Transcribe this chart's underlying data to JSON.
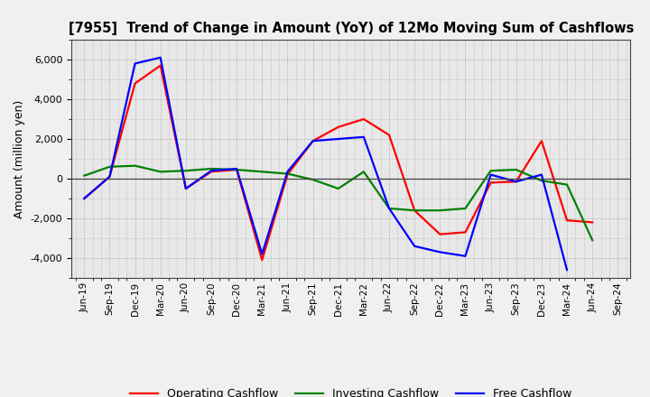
{
  "title": "[7955]  Trend of Change in Amount (YoY) of 12Mo Moving Sum of Cashflows",
  "ylabel": "Amount (million yen)",
  "x_labels": [
    "Jun-19",
    "Sep-19",
    "Dec-19",
    "Mar-20",
    "Jun-20",
    "Sep-20",
    "Dec-20",
    "Mar-21",
    "Jun-21",
    "Sep-21",
    "Dec-21",
    "Mar-22",
    "Jun-22",
    "Sep-22",
    "Dec-22",
    "Mar-23",
    "Jun-23",
    "Sep-23",
    "Dec-23",
    "Mar-24",
    "Jun-24",
    "Sep-24"
  ],
  "operating_cashflow": [
    -1000,
    100,
    4800,
    5700,
    -500,
    350,
    450,
    -4100,
    200,
    1900,
    2600,
    3000,
    2200,
    -1600,
    -2800,
    -2700,
    -200,
    -150,
    1900,
    -2100,
    -2200,
    null
  ],
  "investing_cashflow": [
    150,
    600,
    650,
    350,
    400,
    500,
    450,
    350,
    250,
    -50,
    -500,
    350,
    -1500,
    -1600,
    -1600,
    -1500,
    400,
    450,
    -100,
    -300,
    -3100,
    null
  ],
  "free_cashflow": [
    -1000,
    100,
    5800,
    6100,
    -500,
    400,
    500,
    -3800,
    350,
    1900,
    2000,
    2100,
    -1500,
    -3400,
    -3700,
    -3900,
    200,
    -150,
    200,
    -4600,
    null,
    null
  ],
  "ylim": [
    -5000,
    7000
  ],
  "yticks": [
    -4000,
    -2000,
    0,
    2000,
    4000,
    6000
  ],
  "operating_color": "#ff0000",
  "investing_color": "#008000",
  "free_color": "#0000ff",
  "line_width": 1.6,
  "bg_color": "#f0f0f0",
  "plot_bg_color": "#e8e8e8",
  "grid_color": "#999999",
  "legend_labels": [
    "Operating Cashflow",
    "Investing Cashflow",
    "Free Cashflow"
  ]
}
